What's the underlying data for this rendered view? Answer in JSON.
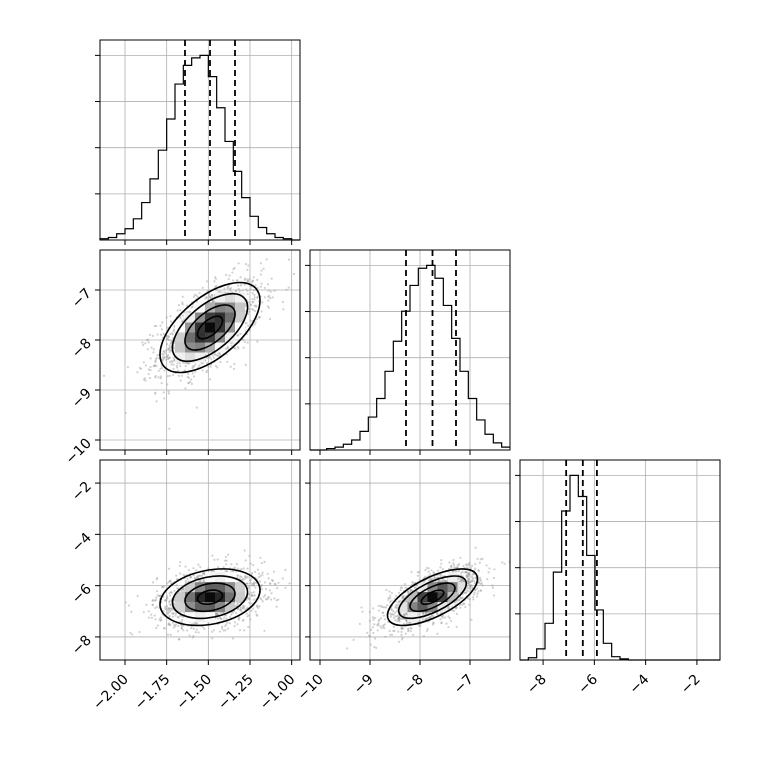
{
  "chart_data": {
    "type": "corner",
    "grid": true,
    "parameters": [
      {
        "range": [
          -2.15,
          -0.95
        ],
        "ticks": [
          -2.0,
          -1.75,
          -1.5,
          -1.25,
          -1.0
        ],
        "tick_labels": [
          "−2.00",
          "−1.75",
          "−1.50",
          "−1.25",
          "−1.00"
        ],
        "mean": -1.49,
        "std": 0.15,
        "quantiles": [
          -1.64,
          -1.49,
          -1.34
        ]
      },
      {
        "range": [
          -10.2,
          -6.2
        ],
        "ticks": [
          -10,
          -9,
          -8,
          -7
        ],
        "tick_labels": [
          "−10",
          "−9",
          "−8",
          "−7"
        ],
        "mean": -7.75,
        "std": 0.45,
        "quantiles": [
          -8.28,
          -7.75,
          -7.28
        ]
      },
      {
        "range": [
          -8.9,
          -1.1
        ],
        "ticks": [
          -8,
          -6,
          -4,
          -2
        ],
        "tick_labels": [
          "−8",
          "−6",
          "−4",
          "−2"
        ],
        "mean": -6.45,
        "std": 0.55,
        "quantiles": [
          -7.1,
          -6.45,
          -5.9
        ]
      }
    ],
    "histograms": [
      {
        "param": 0,
        "bins": 24,
        "range": [
          -2.15,
          -0.95
        ],
        "counts": [
          1,
          2,
          5,
          9,
          17,
          30,
          49,
          72,
          97,
          125,
          140,
          146,
          148,
          131,
          106,
          79,
          55,
          34,
          19,
          10,
          5,
          2,
          1,
          0
        ]
      },
      {
        "param": 1,
        "bins": 24,
        "range": [
          -10.2,
          -6.2
        ],
        "counts": [
          0,
          0,
          1,
          2,
          4,
          7,
          13,
          23,
          36,
          55,
          76,
          97,
          115,
          127,
          129,
          120,
          101,
          78,
          55,
          36,
          21,
          11,
          5,
          2
        ]
      },
      {
        "param": 2,
        "bins": 24,
        "range": [
          -8.9,
          -1.1
        ],
        "counts": [
          0,
          2,
          10,
          33,
          79,
          134,
          166,
          147,
          94,
          45,
          15,
          3,
          1,
          0,
          0,
          0,
          0,
          0,
          0,
          0,
          0,
          0,
          0,
          0
        ]
      }
    ],
    "scatter_panels": [
      {
        "x_param": 0,
        "y_param": 1,
        "correlation": 0.6,
        "n_points": 1400
      },
      {
        "x_param": 0,
        "y_param": 2,
        "correlation": 0.25,
        "n_points": 1400
      },
      {
        "x_param": 1,
        "y_param": 2,
        "correlation": 0.65,
        "n_points": 1400
      }
    ],
    "contour_levels_sigma": [
      0.5,
      1.0,
      1.5,
      2.0
    ],
    "colors": {
      "line": "#000000",
      "grid": "#b0b0b0",
      "points": "#9a9a9a"
    }
  }
}
